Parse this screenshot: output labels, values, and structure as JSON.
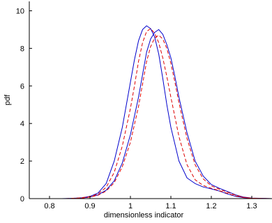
{
  "chart_data": {
    "type": "line",
    "title": "",
    "xlabel": "dimensionless indicator",
    "ylabel": "pdf",
    "xlim": [
      0.75,
      1.35
    ],
    "ylim": [
      0,
      10.5
    ],
    "xticks": [
      0.8,
      0.9,
      1,
      1.1,
      1.2,
      1.3
    ],
    "xtick_labels": [
      "0.8",
      "0.9",
      "1",
      "1.1",
      "1.2",
      "1.3"
    ],
    "yticks": [
      0,
      2,
      4,
      6,
      8,
      10
    ],
    "ytick_labels": [
      "0",
      "2",
      "4",
      "6",
      "8",
      "10"
    ],
    "grid": false,
    "legend": "none",
    "series": [
      {
        "color": "#0000cc",
        "dash": "solid",
        "x": [
          0.83,
          0.86,
          0.88,
          0.9,
          0.92,
          0.94,
          0.96,
          0.98,
          1.0,
          1.01,
          1.02,
          1.03,
          1.04,
          1.05,
          1.06,
          1.07,
          1.08,
          1.09,
          1.1,
          1.12,
          1.14,
          1.16,
          1.18,
          1.2,
          1.22,
          1.24,
          1.26,
          1.28,
          1.3,
          1.35
        ],
        "values": [
          0,
          0.02,
          0.05,
          0.12,
          0.3,
          0.8,
          2.0,
          3.8,
          6.2,
          7.4,
          8.4,
          9.0,
          9.2,
          9.05,
          8.6,
          7.7,
          6.4,
          5.0,
          3.8,
          2.0,
          1.1,
          0.8,
          0.62,
          0.52,
          0.4,
          0.25,
          0.12,
          0.05,
          0.02,
          0
        ]
      },
      {
        "color": "#0000cc",
        "dash": "solid",
        "x": [
          0.85,
          0.88,
          0.9,
          0.92,
          0.94,
          0.96,
          0.98,
          1.0,
          1.02,
          1.03,
          1.04,
          1.05,
          1.06,
          1.07,
          1.08,
          1.09,
          1.1,
          1.11,
          1.12,
          1.14,
          1.16,
          1.18,
          1.2,
          1.22,
          1.24,
          1.26,
          1.28,
          1.3,
          1.35
        ],
        "values": [
          0,
          0.03,
          0.08,
          0.2,
          0.45,
          0.95,
          1.9,
          3.4,
          5.4,
          6.6,
          7.8,
          8.5,
          8.85,
          9.0,
          8.75,
          8.2,
          7.5,
          6.5,
          5.4,
          3.5,
          2.0,
          1.2,
          0.75,
          0.55,
          0.38,
          0.2,
          0.08,
          0.03,
          0
        ]
      },
      {
        "color": "#dd0000",
        "dash": "dashed",
        "x": [
          0.84,
          0.87,
          0.9,
          0.92,
          0.94,
          0.96,
          0.98,
          1.0,
          1.01,
          1.02,
          1.03,
          1.04,
          1.05,
          1.06,
          1.07,
          1.08,
          1.09,
          1.1,
          1.12,
          1.14,
          1.16,
          1.18,
          1.2,
          1.22,
          1.24,
          1.26,
          1.28,
          1.3,
          1.35
        ],
        "values": [
          0,
          0.03,
          0.1,
          0.25,
          0.6,
          1.4,
          2.8,
          4.8,
          6.0,
          7.3,
          8.3,
          8.9,
          9.05,
          8.8,
          8.3,
          7.5,
          6.5,
          5.4,
          3.3,
          1.8,
          1.0,
          0.7,
          0.55,
          0.42,
          0.28,
          0.14,
          0.06,
          0.02,
          0
        ]
      },
      {
        "color": "#dd0000",
        "dash": "dashed",
        "x": [
          0.85,
          0.88,
          0.9,
          0.92,
          0.94,
          0.96,
          0.98,
          1.0,
          1.02,
          1.03,
          1.04,
          1.05,
          1.06,
          1.07,
          1.08,
          1.09,
          1.1,
          1.11,
          1.12,
          1.14,
          1.16,
          1.18,
          1.2,
          1.22,
          1.24,
          1.26,
          1.28,
          1.3,
          1.35
        ],
        "values": [
          0,
          0.03,
          0.08,
          0.18,
          0.4,
          0.85,
          1.7,
          3.0,
          4.9,
          6.1,
          7.3,
          8.1,
          8.55,
          8.7,
          8.5,
          8.0,
          7.2,
          6.2,
          5.1,
          3.2,
          1.8,
          1.05,
          0.68,
          0.5,
          0.34,
          0.18,
          0.07,
          0.02,
          0
        ]
      }
    ]
  }
}
